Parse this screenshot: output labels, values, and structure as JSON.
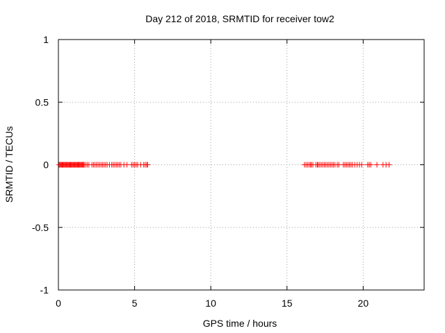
{
  "chart_data": {
    "type": "scatter",
    "title": "Day 212 of 2018, SRMTID for receiver tow2",
    "xlabel": "GPS time / hours",
    "ylabel": "SRMTID / TECUs",
    "xlim": [
      0,
      24
    ],
    "ylim": [
      -1,
      1
    ],
    "xticks": [
      0,
      5,
      10,
      15,
      20
    ],
    "yticks": [
      -1,
      -0.5,
      0,
      0.5,
      1
    ],
    "xtick_labels": [
      "0",
      "5",
      "10",
      "15",
      "20"
    ],
    "ytick_labels": [
      "-1",
      "-0.5",
      "0",
      "0.5",
      "1"
    ],
    "grid": true,
    "marker": "+",
    "color": "#ff0000",
    "series": [
      {
        "x": [
          0.05,
          0.1,
          0.15,
          0.2,
          0.25,
          0.3,
          0.35,
          0.4,
          0.45,
          0.5,
          0.55,
          0.6,
          0.65,
          0.7,
          0.75,
          0.8,
          0.85,
          0.9,
          0.95,
          1.0,
          1.05,
          1.1,
          1.15,
          1.2,
          1.25,
          1.3,
          1.35,
          1.4,
          1.45,
          1.5,
          1.55,
          1.6,
          1.65,
          1.7,
          1.8,
          1.9,
          2.0,
          2.2,
          2.3,
          2.4,
          2.5,
          2.6,
          2.7,
          2.8,
          2.9,
          3.0,
          3.1,
          3.2,
          3.35,
          3.5,
          3.6,
          3.7,
          3.8,
          3.9,
          4.0,
          4.1,
          4.3,
          4.5,
          4.8,
          4.9,
          5.0,
          5.1,
          5.2,
          5.4,
          5.6,
          5.7,
          5.8,
          5.85,
          16.15,
          16.25,
          16.35,
          16.45,
          16.55,
          16.6,
          16.7,
          16.9,
          17.0,
          17.05,
          17.15,
          17.25,
          17.35,
          17.45,
          17.55,
          17.65,
          17.75,
          17.85,
          17.95,
          18.05,
          18.15,
          18.3,
          18.4,
          18.7,
          18.8,
          18.9,
          19.0,
          19.1,
          19.2,
          19.3,
          19.45,
          19.6,
          19.75,
          19.9,
          20.3,
          20.4,
          20.5,
          20.9,
          21.3,
          21.5,
          21.7
        ],
        "y": [
          0,
          0,
          0,
          0,
          0,
          0,
          0,
          0,
          0,
          0,
          0,
          0,
          0,
          0,
          0,
          0,
          0,
          0,
          0,
          0,
          0,
          0,
          0,
          0,
          0,
          0,
          0,
          0,
          0,
          0,
          0,
          0,
          0,
          0,
          0,
          0,
          0,
          0,
          0,
          0,
          0,
          0,
          0,
          0,
          0,
          0,
          0,
          0,
          0,
          0,
          0,
          0,
          0,
          0,
          0,
          0,
          0,
          0,
          0,
          0,
          0,
          0,
          0,
          0,
          0,
          0,
          0,
          0,
          0,
          0,
          0,
          0,
          0,
          0,
          0,
          0,
          0,
          0,
          0,
          0,
          0,
          0,
          0,
          0,
          0,
          0,
          0,
          0,
          0,
          0,
          0,
          0,
          0,
          0,
          0,
          0,
          0,
          0,
          0,
          0,
          0,
          0,
          0,
          0,
          0,
          0,
          0,
          0,
          0
        ]
      }
    ]
  }
}
